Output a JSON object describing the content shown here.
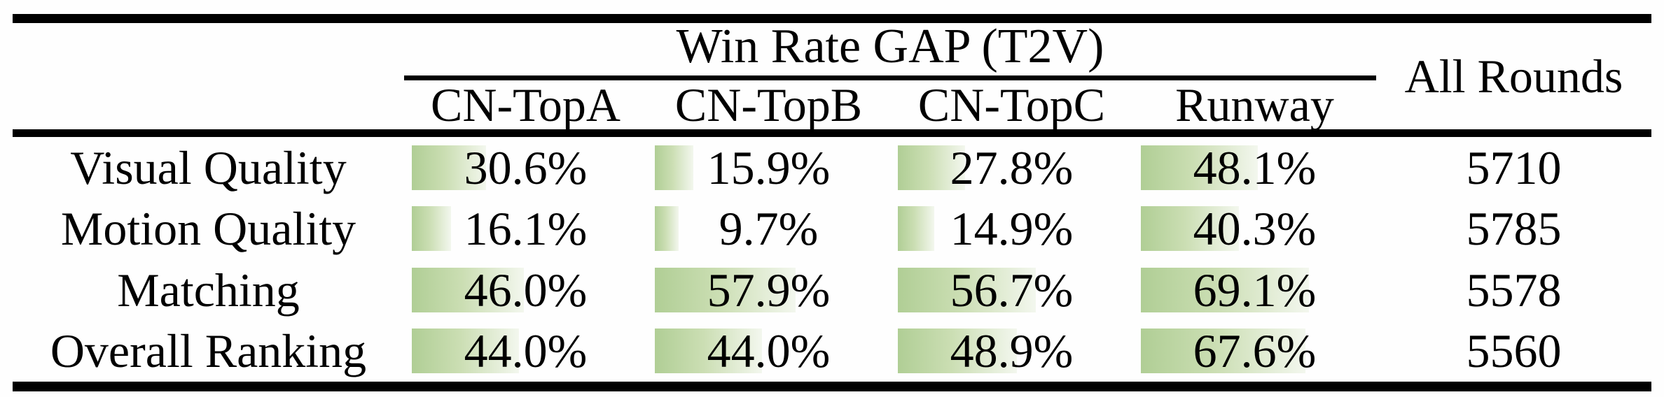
{
  "table": {
    "group_header": "Win Rate GAP (T2V)",
    "all_rounds_header": "All Rounds",
    "model_columns": [
      "CN-TopA",
      "CN-TopB",
      "CN-TopC",
      "Runway"
    ],
    "rows": [
      {
        "label": "Visual Quality",
        "cells": [
          {
            "pct": 30.6,
            "text": "30.6%"
          },
          {
            "pct": 15.9,
            "text": "15.9%"
          },
          {
            "pct": 27.8,
            "text": "27.8%"
          },
          {
            "pct": 48.1,
            "text": "48.1%"
          }
        ],
        "all_rounds": "5710"
      },
      {
        "label": "Motion Quality",
        "cells": [
          {
            "pct": 16.1,
            "text": "16.1%"
          },
          {
            "pct": 9.7,
            "text": "9.7%"
          },
          {
            "pct": 14.9,
            "text": "14.9%"
          },
          {
            "pct": 40.3,
            "text": "40.3%"
          }
        ],
        "all_rounds": "5785"
      },
      {
        "label": "Matching",
        "cells": [
          {
            "pct": 46.0,
            "text": "46.0%"
          },
          {
            "pct": 57.9,
            "text": "57.9%"
          },
          {
            "pct": 56.7,
            "text": "56.7%"
          },
          {
            "pct": 69.1,
            "text": "69.1%"
          }
        ],
        "all_rounds": "5578"
      },
      {
        "label": "Overall Ranking",
        "cells": [
          {
            "pct": 44.0,
            "text": "44.0%"
          },
          {
            "pct": 44.0,
            "text": "44.0%"
          },
          {
            "pct": 48.9,
            "text": "48.9%"
          },
          {
            "pct": 67.6,
            "text": "67.6%"
          }
        ],
        "all_rounds": "5560"
      }
    ],
    "colors": {
      "bar_gradient_start": "#b0ce95",
      "bar_gradient_mid": "#cbdeb3",
      "bar_gradient_end": "#f3f7ee",
      "rule": "#000000",
      "background": "#fefefe"
    }
  },
  "chart_data": {
    "type": "table",
    "title": "Win Rate GAP (T2V)",
    "categories": [
      "Visual Quality",
      "Motion Quality",
      "Matching",
      "Overall Ranking"
    ],
    "series": [
      {
        "name": "CN-TopA",
        "values": [
          30.6,
          16.1,
          46.0,
          44.0
        ],
        "unit": "%"
      },
      {
        "name": "CN-TopB",
        "values": [
          15.9,
          9.7,
          57.9,
          44.0
        ],
        "unit": "%"
      },
      {
        "name": "CN-TopC",
        "values": [
          27.8,
          14.9,
          56.7,
          48.9
        ],
        "unit": "%"
      },
      {
        "name": "Runway",
        "values": [
          48.1,
          40.3,
          69.1,
          67.6
        ],
        "unit": "%"
      },
      {
        "name": "All Rounds",
        "values": [
          5710,
          5785,
          5578,
          5560
        ],
        "unit": "rounds"
      }
    ],
    "layout_hints": {
      "in_cell_bars": true,
      "bar_scale": "bar width = percentage of column width",
      "bar_range": [
        0,
        100
      ]
    }
  }
}
